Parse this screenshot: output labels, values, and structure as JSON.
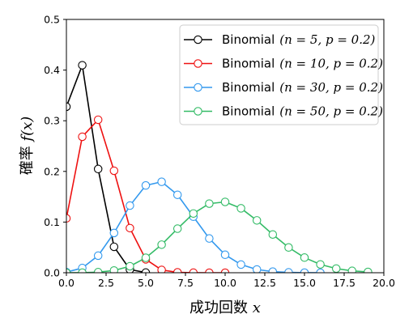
{
  "chart_data": {
    "type": "line",
    "xlabel_text": "成功回数",
    "xlabel_var": "x",
    "ylabel_text": "確率",
    "ylabel_var": "f(x)",
    "xlim": [
      0,
      20
    ],
    "ylim": [
      0,
      0.5
    ],
    "xticks": [
      "0.0",
      "2.5",
      "5.0",
      "7.5",
      "10.0",
      "12.5",
      "15.0",
      "17.5",
      "20.0"
    ],
    "yticks": [
      "0.0",
      "0.1",
      "0.2",
      "0.3",
      "0.4",
      "0.5"
    ],
    "grid": false,
    "legend_position": "top-right",
    "series": [
      {
        "name": "Binomial",
        "params": "(n = 5, p = 0.2)",
        "color": "#000000",
        "x": [
          0,
          1,
          2,
          3,
          4,
          5
        ],
        "y": [
          0.3277,
          0.4096,
          0.2048,
          0.0512,
          0.0064,
          0.0003
        ]
      },
      {
        "name": "Binomial",
        "params": "(n = 10, p = 0.2)",
        "color": "#ee1111",
        "x": [
          0,
          1,
          2,
          3,
          4,
          5,
          6,
          7,
          8,
          9,
          10
        ],
        "y": [
          0.1074,
          0.2684,
          0.302,
          0.2013,
          0.0881,
          0.0264,
          0.0055,
          0.0008,
          0.0001,
          0.0,
          0.0
        ]
      },
      {
        "name": "Binomial",
        "params": "(n = 30, p = 0.2)",
        "color": "#3399ee",
        "x": [
          0,
          1,
          2,
          3,
          4,
          5,
          6,
          7,
          8,
          9,
          10,
          11,
          12,
          13,
          14,
          15,
          16
        ],
        "y": [
          0.0012,
          0.0093,
          0.0337,
          0.0785,
          0.1325,
          0.1723,
          0.1795,
          0.1538,
          0.1106,
          0.0676,
          0.0355,
          0.0161,
          0.0064,
          0.0022,
          0.0007,
          0.0002,
          0.0
        ]
      },
      {
        "name": "Binomial",
        "params": "(n = 50, p = 0.2)",
        "color": "#33bb66",
        "x": [
          0,
          1,
          2,
          3,
          4,
          5,
          6,
          7,
          8,
          9,
          10,
          11,
          12,
          13,
          14,
          15,
          16,
          17,
          18,
          19
        ],
        "y": [
          0.0,
          0.0002,
          0.0011,
          0.0044,
          0.0128,
          0.0295,
          0.0554,
          0.087,
          0.1169,
          0.1364,
          0.1398,
          0.1271,
          0.1033,
          0.0755,
          0.0499,
          0.0299,
          0.0164,
          0.0082,
          0.0037,
          0.0016
        ]
      }
    ]
  }
}
